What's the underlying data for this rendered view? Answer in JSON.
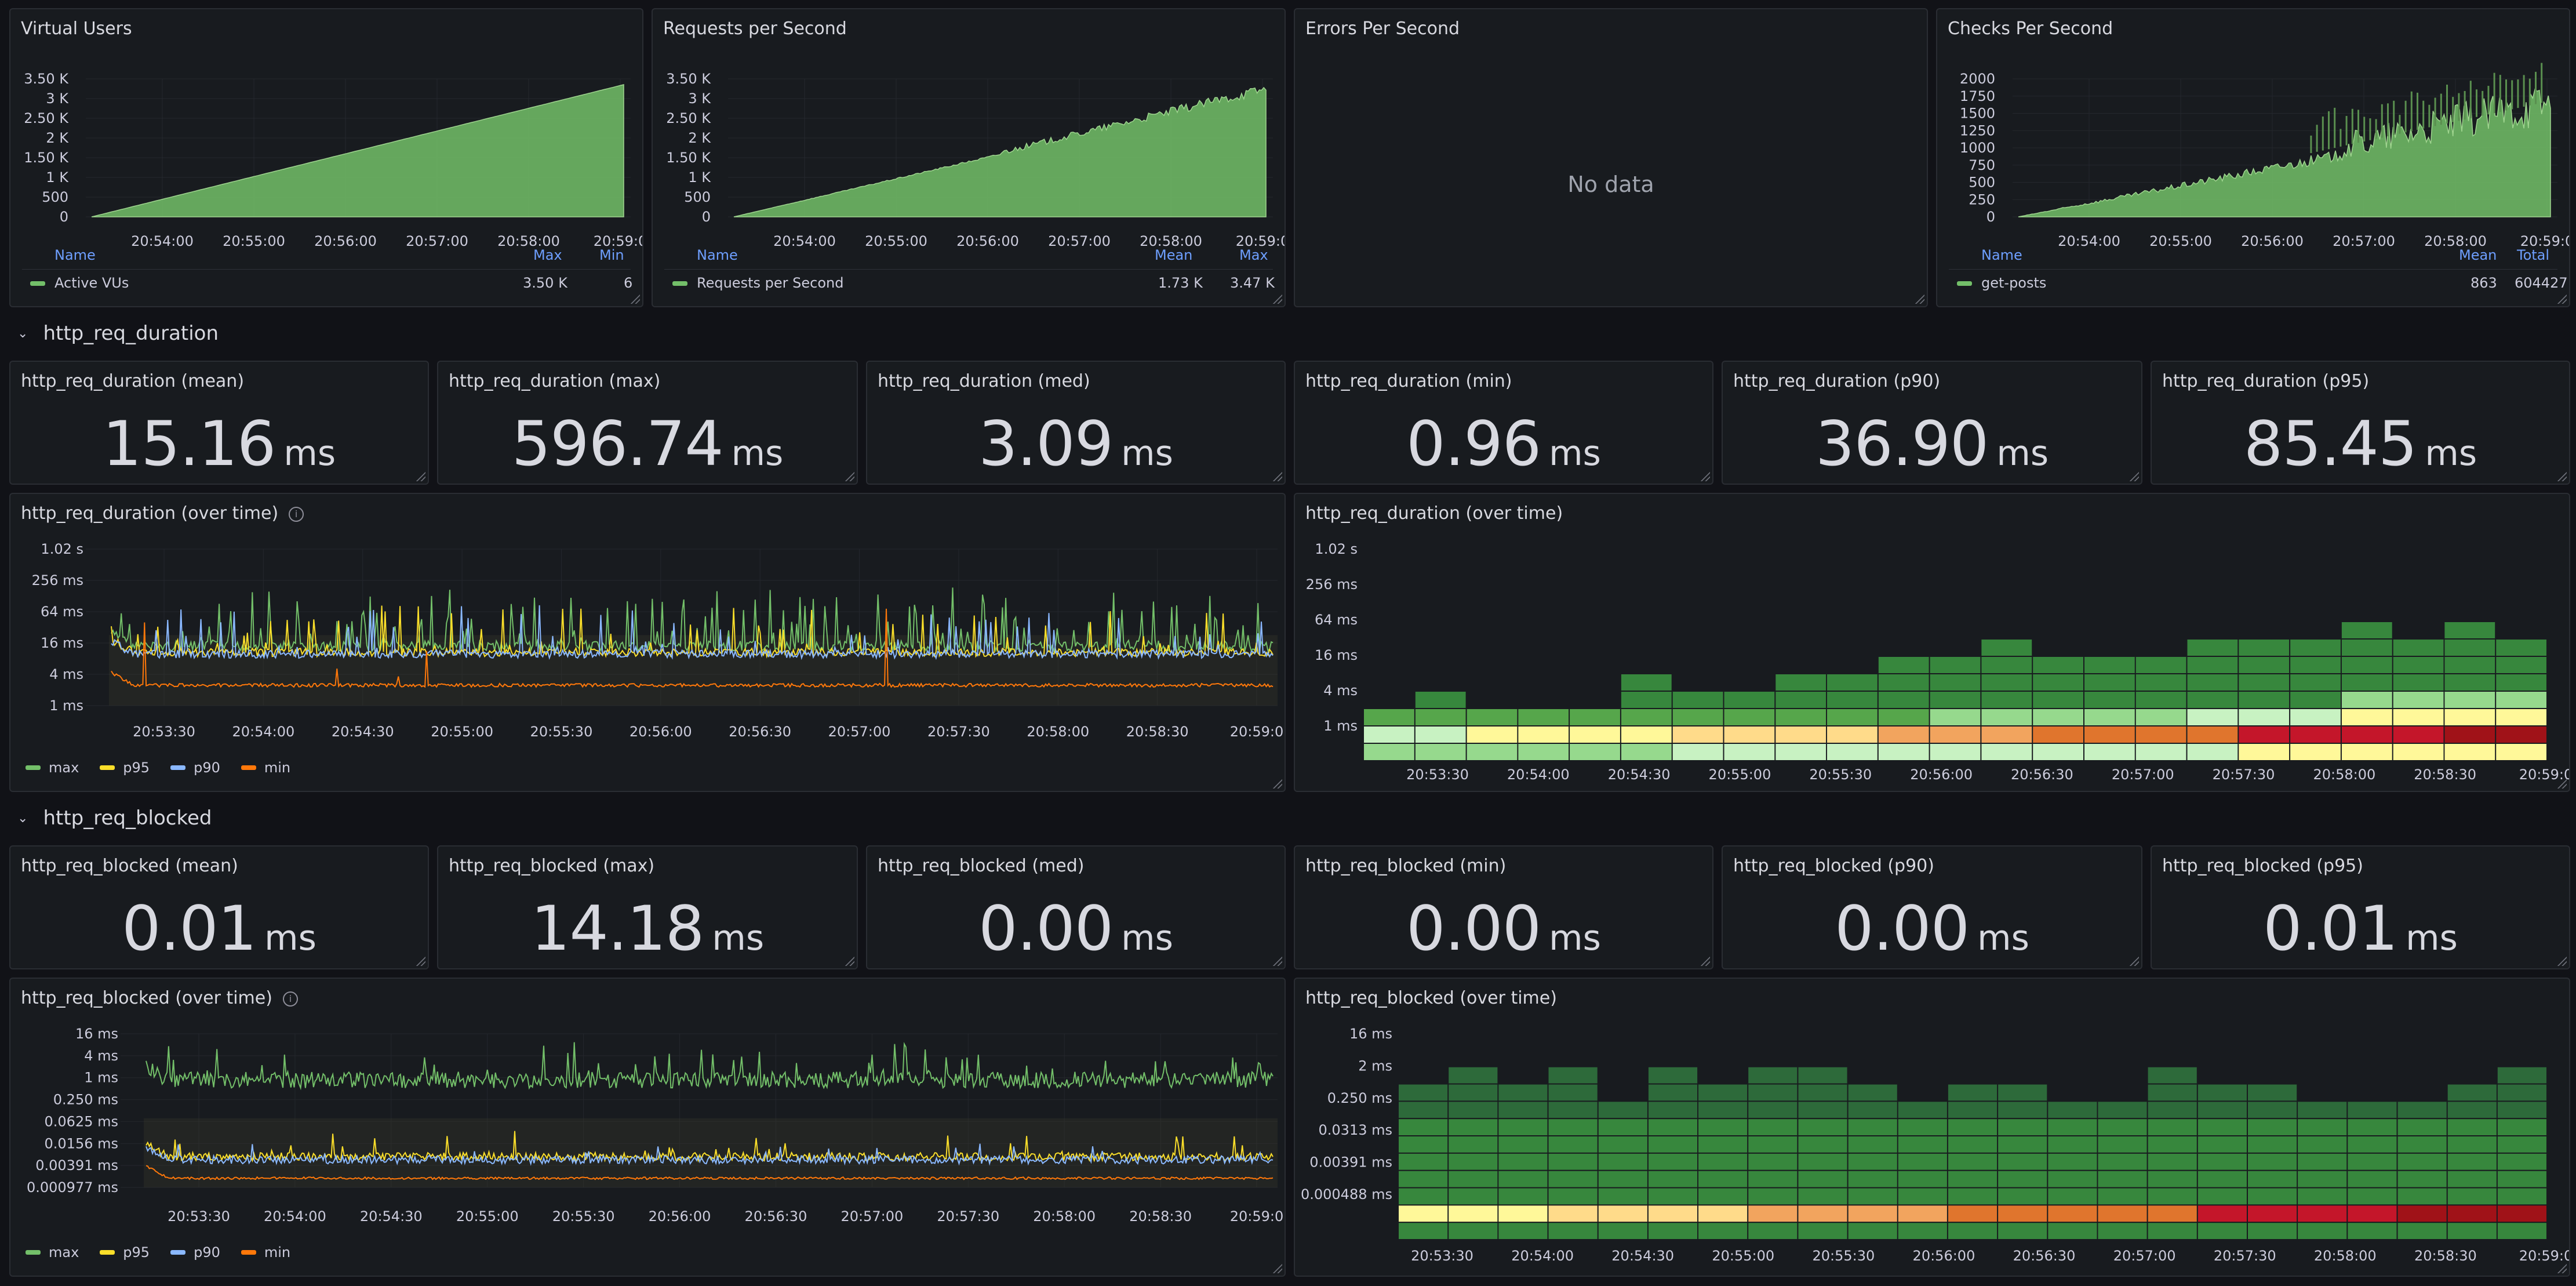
{
  "colors": {
    "green": "#73bf69",
    "yellow": "#fade2a",
    "blue": "#8ab8ff",
    "orange": "#ff780a",
    "axis_text": "#ccccdc",
    "legend_head": "#6e9fff"
  },
  "top_panels": {
    "vus": {
      "title": "Virtual Users",
      "yticks": [
        "3.50 K",
        "3 K",
        "2.50 K",
        "2 K",
        "1.50 K",
        "1 K",
        "500",
        "0"
      ],
      "xticks": [
        "20:54:00",
        "20:55:00",
        "20:56:00",
        "20:57:00",
        "20:58:00",
        "20:59:0"
      ],
      "legend": {
        "name_head": "Name",
        "col1": "Max",
        "col2": "Min",
        "series": "Active VUs",
        "v1": "3.50 K",
        "v2": "6"
      }
    },
    "rps": {
      "title": "Requests per Second",
      "yticks": [
        "3.50 K",
        "3 K",
        "2.50 K",
        "2 K",
        "1.50 K",
        "1 K",
        "500",
        "0"
      ],
      "xticks": [
        "20:54:00",
        "20:55:00",
        "20:56:00",
        "20:57:00",
        "20:58:00",
        "20:59:0"
      ],
      "legend": {
        "name_head": "Name",
        "col1": "Mean",
        "col2": "Max",
        "series": "Requests per Second",
        "v1": "1.73 K",
        "v2": "3.47 K"
      }
    },
    "eps": {
      "title": "Errors Per Second",
      "no_data": "No data"
    },
    "cps": {
      "title": "Checks Per Second",
      "yticks": [
        "2000",
        "1750",
        "1500",
        "1250",
        "1000",
        "750",
        "500",
        "250",
        "0"
      ],
      "xticks": [
        "20:54:00",
        "20:55:00",
        "20:56:00",
        "20:57:00",
        "20:58:00",
        "20:59:0"
      ],
      "legend": {
        "name_head": "Name",
        "col1": "Mean",
        "col2": "Total",
        "series": "get-posts",
        "v1": "863",
        "v2": "604427"
      }
    }
  },
  "rows": [
    {
      "title": "http_req_duration",
      "stats": [
        {
          "title": "http_req_duration (mean)",
          "value": "15.16",
          "unit": "ms"
        },
        {
          "title": "http_req_duration (max)",
          "value": "596.74",
          "unit": "ms"
        },
        {
          "title": "http_req_duration (med)",
          "value": "3.09",
          "unit": "ms"
        },
        {
          "title": "http_req_duration (min)",
          "value": "0.96",
          "unit": "ms"
        },
        {
          "title": "http_req_duration (p90)",
          "value": "36.90",
          "unit": "ms"
        },
        {
          "title": "http_req_duration (p95)",
          "value": "85.45",
          "unit": "ms"
        }
      ],
      "timeseries": {
        "title": "http_req_duration (over time)",
        "info_icon": "info-icon",
        "yticks": [
          "1.02 s",
          "256 ms",
          "64 ms",
          "16 ms",
          "4 ms",
          "1 ms"
        ],
        "xticks": [
          "20:53:30",
          "20:54:00",
          "20:54:30",
          "20:55:00",
          "20:55:30",
          "20:56:00",
          "20:56:30",
          "20:57:00",
          "20:57:30",
          "20:58:00",
          "20:58:30",
          "20:59:0"
        ],
        "legend": [
          "max",
          "p95",
          "p90",
          "min"
        ]
      },
      "heatmap": {
        "title": "http_req_duration (over time)",
        "yticks": [
          "1.02 s",
          "256 ms",
          "64 ms",
          "16 ms",
          "4 ms",
          "1 ms"
        ],
        "xticks": [
          "20:53:30",
          "20:54:00",
          "20:54:30",
          "20:55:00",
          "20:55:30",
          "20:56:00",
          "20:56:30",
          "20:57:00",
          "20:57:30",
          "20:58:00",
          "20:58:30",
          "20:59:0"
        ]
      }
    },
    {
      "title": "http_req_blocked",
      "stats": [
        {
          "title": "http_req_blocked (mean)",
          "value": "0.01",
          "unit": "ms"
        },
        {
          "title": "http_req_blocked (max)",
          "value": "14.18",
          "unit": "ms"
        },
        {
          "title": "http_req_blocked (med)",
          "value": "0.00",
          "unit": "ms"
        },
        {
          "title": "http_req_blocked (min)",
          "value": "0.00",
          "unit": "ms"
        },
        {
          "title": "http_req_blocked (p90)",
          "value": "0.00",
          "unit": "ms"
        },
        {
          "title": "http_req_blocked (p95)",
          "value": "0.01",
          "unit": "ms"
        }
      ],
      "timeseries": {
        "title": "http_req_blocked (over time)",
        "info_icon": "info-icon",
        "yticks": [
          "16 ms",
          "4 ms",
          "1 ms",
          "0.250 ms",
          "0.0625 ms",
          "0.0156 ms",
          "0.00391 ms",
          "0.000977 ms"
        ],
        "xticks": [
          "20:53:30",
          "20:54:00",
          "20:54:30",
          "20:55:00",
          "20:55:30",
          "20:56:00",
          "20:56:30",
          "20:57:00",
          "20:57:30",
          "20:58:00",
          "20:58:30",
          "20:59:0"
        ],
        "legend": [
          "max",
          "p95",
          "p90",
          "min"
        ]
      },
      "heatmap": {
        "title": "http_req_blocked (over time)",
        "yticks": [
          "16 ms",
          "2 ms",
          "0.250 ms",
          "0.0313 ms",
          "0.00391 ms",
          "0.000488 ms"
        ],
        "xticks": [
          "20:53:30",
          "20:54:00",
          "20:54:30",
          "20:55:00",
          "20:55:30",
          "20:56:00",
          "20:56:30",
          "20:57:00",
          "20:57:30",
          "20:58:00",
          "20:58:30",
          "20:59:0"
        ]
      }
    }
  ]
}
